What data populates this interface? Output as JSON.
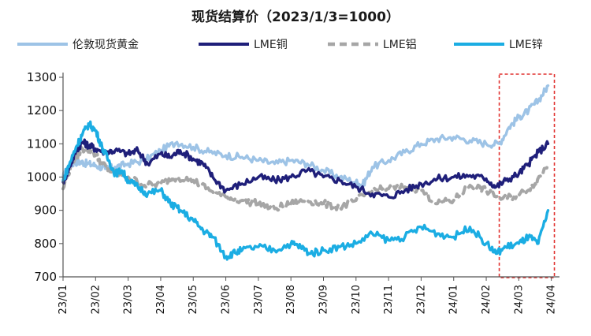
{
  "chart_data": {
    "type": "line",
    "title": "现货结算价（2023/1/3=1000）",
    "xlabel": "",
    "ylabel": "",
    "ylim": [
      700,
      1300
    ],
    "yticks": [
      "700",
      "800",
      "900",
      "1000",
      "1100",
      "1200",
      "1300"
    ],
    "x_tick_labels": [
      "23/01",
      "23/02",
      "23/03",
      "23/04",
      "23/05",
      "23/06",
      "23/07",
      "23/08",
      "23/09",
      "23/10",
      "23/11",
      "23/12",
      "24/01",
      "24/02",
      "24/03",
      "24/04"
    ],
    "grid": false,
    "legend_position": "top",
    "annotation": "dashed red box highlighting 2024/02 to 2024/04",
    "highlight_range": [
      13.4,
      14.9
    ],
    "series": [
      {
        "name": "伦敦现货黄金",
        "color": "#9DC3E6",
        "dash": "",
        "x": [
          0,
          0.15,
          0.35,
          0.55,
          0.75,
          1.0,
          1.3,
          1.6,
          2.0,
          2.5,
          3.0,
          3.5,
          4.0,
          4.5,
          5.0,
          5.5,
          6.0,
          6.5,
          7.0,
          7.5,
          8.0,
          8.5,
          9.0,
          9.2,
          9.5,
          10.0,
          10.5,
          11.0,
          11.5,
          12.0,
          12.5,
          13.0,
          13.4,
          13.7,
          14.0,
          14.3,
          14.6,
          14.9
        ],
        "values": [
          1000,
          1030,
          1045,
          1045,
          1040,
          1035,
          1025,
          1030,
          1040,
          1050,
          1080,
          1105,
          1090,
          1075,
          1065,
          1060,
          1050,
          1040,
          1050,
          1040,
          1020,
          1000,
          985,
          975,
          1030,
          1050,
          1075,
          1100,
          1115,
          1120,
          1110,
          1100,
          1100,
          1150,
          1180,
          1200,
          1230,
          1275
        ]
      },
      {
        "name": "LME铜",
        "color": "#1F1F7A",
        "dash": "",
        "x": [
          0,
          0.2,
          0.4,
          0.6,
          0.8,
          1.0,
          1.3,
          1.6,
          2.0,
          2.3,
          2.6,
          3.0,
          3.3,
          3.6,
          4.0,
          4.3,
          4.6,
          5.0,
          5.5,
          6.0,
          6.5,
          7.0,
          7.5,
          8.0,
          8.5,
          9.0,
          9.5,
          10.0,
          10.5,
          11.0,
          11.5,
          12.0,
          12.5,
          13.0,
          13.3,
          13.6,
          14.0,
          14.3,
          14.6,
          14.9
        ],
        "values": [
          985,
          1030,
          1080,
          1105,
          1095,
          1085,
          1075,
          1080,
          1070,
          1080,
          1040,
          1070,
          1060,
          1080,
          1055,
          1040,
          1000,
          960,
          980,
          1000,
          990,
          1000,
          1020,
          1000,
          990,
          970,
          950,
          940,
          960,
          980,
          995,
          1000,
          1005,
          995,
          970,
          990,
          1010,
          1040,
          1075,
          1100
        ]
      },
      {
        "name": "LME铝",
        "color": "#A6A6A6",
        "dash": "9,6",
        "x": [
          0,
          0.3,
          0.6,
          0.9,
          1.2,
          1.5,
          2.0,
          2.5,
          3.0,
          3.5,
          4.0,
          4.5,
          5.0,
          5.5,
          6.0,
          6.5,
          7.0,
          7.5,
          8.0,
          8.5,
          9.0,
          9.5,
          10.0,
          10.5,
          11.0,
          11.5,
          12.0,
          12.5,
          13.0,
          13.5,
          14.0,
          14.5,
          14.9
        ],
        "values": [
          965,
          1050,
          1085,
          1080,
          1040,
          1015,
          1000,
          975,
          980,
          1000,
          990,
          960,
          940,
          930,
          920,
          905,
          920,
          930,
          920,
          910,
          930,
          960,
          965,
          970,
          960,
          920,
          930,
          975,
          960,
          935,
          945,
          980,
          1040
        ]
      },
      {
        "name": "LME锌",
        "color": "#1BADE3",
        "dash": "",
        "x": [
          0,
          0.2,
          0.4,
          0.6,
          0.8,
          1.0,
          1.2,
          1.4,
          1.6,
          1.8,
          2.0,
          2.3,
          2.6,
          3.0,
          3.3,
          3.6,
          4.0,
          4.3,
          4.6,
          5.0,
          5.2,
          5.5,
          6.0,
          6.5,
          7.0,
          7.3,
          7.6,
          8.0,
          8.5,
          9.0,
          9.5,
          10.0,
          10.5,
          11.0,
          11.5,
          12.0,
          12.5,
          13.0,
          13.3,
          13.6,
          14.0,
          14.3,
          14.6,
          14.9
        ],
        "values": [
          990,
          1040,
          1090,
          1130,
          1160,
          1140,
          1090,
          1050,
          1010,
          1020,
          990,
          970,
          950,
          960,
          920,
          900,
          870,
          840,
          820,
          760,
          770,
          780,
          790,
          780,
          800,
          790,
          770,
          780,
          790,
          800,
          830,
          810,
          820,
          850,
          830,
          820,
          850,
          800,
          770,
          790,
          800,
          820,
          800,
          900
        ]
      }
    ]
  }
}
